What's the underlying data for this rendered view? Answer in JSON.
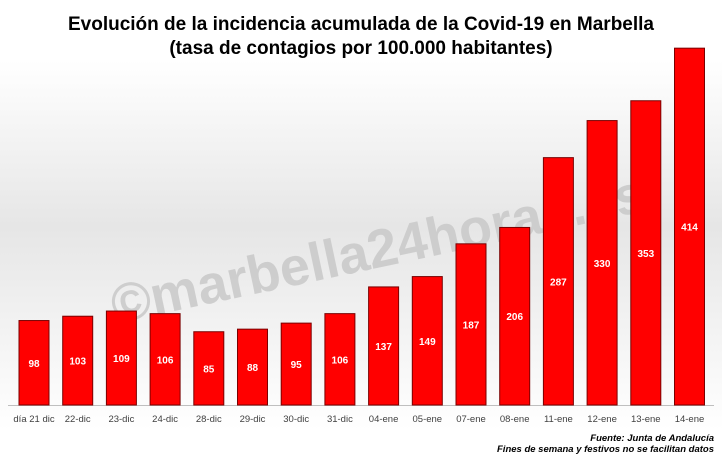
{
  "chart_data": {
    "type": "bar",
    "title": "Evolución de la incidencia acumulada de la Covid-19 en Marbella",
    "subtitle": "(tasa de contagios por 100.000 habitantes)",
    "categories": [
      "día 21 dic",
      "22-dic",
      "23-dic",
      "24-dic",
      "28-dic",
      "29-dic",
      "30-dic",
      "31-dic",
      "04-ene",
      "05-ene",
      "07-ene",
      "08-ene",
      "11-ene",
      "12-ene",
      "13-ene",
      "14-ene"
    ],
    "values": [
      98,
      103,
      109,
      106,
      85,
      88,
      95,
      106,
      137,
      149,
      187,
      206,
      287,
      330,
      353,
      414
    ],
    "ylim": [
      0,
      420
    ],
    "grid": false,
    "legend": "none",
    "bar_color": "#ff0000",
    "label_color": "#ffffff"
  },
  "watermark": "©marbella24horas.es",
  "source_line1": "Fuente: Junta de Andalucía",
  "source_line2": "Fines de semana y festivos no se facilitan datos"
}
